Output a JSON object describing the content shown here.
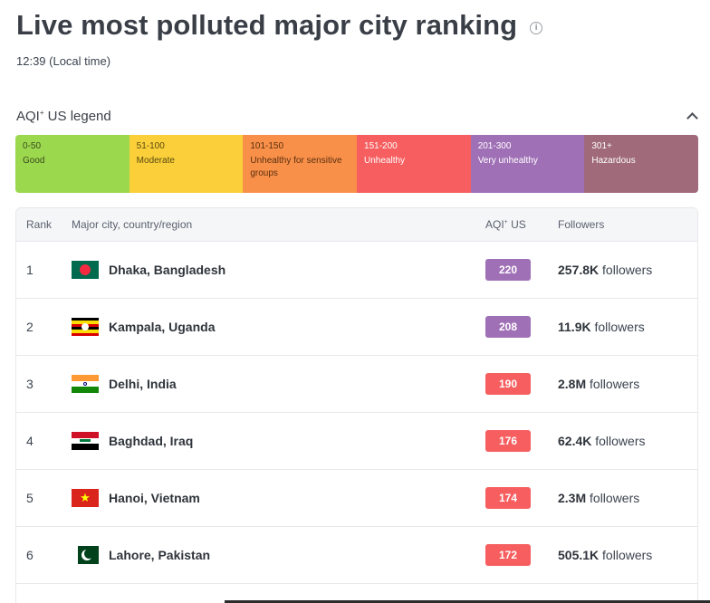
{
  "header": {
    "title": "Live most polluted major city ranking",
    "info_icon": "info-icon",
    "timestamp": "12:39 (Local time)"
  },
  "legend": {
    "title": "AQI",
    "title_sup": "+",
    "title_suffix": " US legend",
    "collapse_icon": "chevron-up-icon",
    "segments": [
      {
        "range": "0-50",
        "label": "Good",
        "color": "#9cd84e",
        "text_color": "#3a4a1e"
      },
      {
        "range": "51-100",
        "label": "Moderate",
        "color": "#facf39",
        "text_color": "#5a4a10"
      },
      {
        "range": "101-150",
        "label": "Unhealthy for sensitive groups",
        "color": "#f99049",
        "text_color": "#5a3010"
      },
      {
        "range": "151-200",
        "label": "Unhealthy",
        "color": "#f65e5f",
        "text_color": "#ffffff"
      },
      {
        "range": "201-300",
        "label": "Very unhealthy",
        "color": "#a070b6",
        "text_color": "#ffffff"
      },
      {
        "range": "301+",
        "label": "Hazardous",
        "color": "#a06a7b",
        "text_color": "#ffffff"
      }
    ]
  },
  "table": {
    "headers": {
      "rank": "Rank",
      "city": "Major city, country/region",
      "aqi": "AQI",
      "aqi_sup": "+",
      "aqi_suffix": " US",
      "followers": "Followers"
    },
    "rows": [
      {
        "rank": "1",
        "city": "Dhaka, Bangladesh",
        "flag": "bangladesh-flag-icon",
        "aqi": "220",
        "aqi_color": "#a070b6",
        "followers": "257.8K",
        "followers_word": "followers"
      },
      {
        "rank": "2",
        "city": "Kampala, Uganda",
        "flag": "uganda-flag-icon",
        "aqi": "208",
        "aqi_color": "#a070b6",
        "followers": "11.9K",
        "followers_word": "followers"
      },
      {
        "rank": "3",
        "city": "Delhi, India",
        "flag": "india-flag-icon",
        "aqi": "190",
        "aqi_color": "#f65e5f",
        "followers": "2.8M",
        "followers_word": "followers"
      },
      {
        "rank": "4",
        "city": "Baghdad, Iraq",
        "flag": "iraq-flag-icon",
        "aqi": "176",
        "aqi_color": "#f65e5f",
        "followers": "62.4K",
        "followers_word": "followers"
      },
      {
        "rank": "5",
        "city": "Hanoi, Vietnam",
        "flag": "vietnam-flag-icon",
        "aqi": "174",
        "aqi_color": "#f65e5f",
        "followers": "2.3M",
        "followers_word": "followers"
      },
      {
        "rank": "6",
        "city": "Lahore, Pakistan",
        "flag": "pakistan-flag-icon",
        "aqi": "172",
        "aqi_color": "#f65e5f",
        "followers": "505.1K",
        "followers_word": "followers"
      }
    ]
  }
}
